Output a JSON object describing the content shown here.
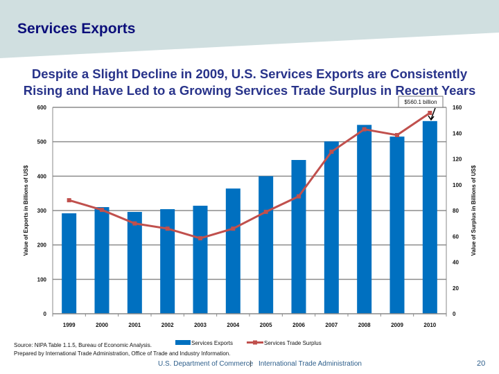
{
  "slide": {
    "title": "Services Exports",
    "headline_line1": "Despite a Slight Decline in 2009, U.S. Services Exports are Consistently",
    "headline_line2": "Rising and Have Led to a Growing Services Trade Surplus in Recent Years",
    "source": "Source:  NIPA Table 1.1.5, Bureau of Economic Analysis.",
    "prepared_by": "Prepared by International Trade Administration, Office of Trade and Industry Information.",
    "footer_left": "U.S. Department of Commerce",
    "footer_right": "International Trade Administration",
    "page_number": "20",
    "band_color": "#d0dfe0"
  },
  "chart_data": {
    "type": "bar+line",
    "categories": [
      "1999",
      "2000",
      "2001",
      "2002",
      "2003",
      "2004",
      "2005",
      "2006",
      "2007",
      "2008",
      "2009",
      "2010"
    ],
    "series": [
      {
        "name": "Services Exports",
        "type": "bar",
        "axis": "left",
        "color": "#0070c0",
        "values": [
          292,
          310,
          296,
          304,
          314,
          364,
          400,
          447,
          501,
          549,
          515,
          560.1
        ]
      },
      {
        "name": "Services Trade Surplus",
        "type": "line",
        "axis": "right",
        "color": "#c0504d",
        "values": [
          88,
          80.5,
          70,
          66,
          58.5,
          66,
          79,
          91,
          125.6,
          143,
          138.5,
          155.7
        ]
      }
    ],
    "ylabel_left": "Value of Exports in Billions of US$",
    "ylabel_right": "Value of Surplus in Billions of US$",
    "ylim_left": [
      0,
      600
    ],
    "yticks_left": [
      0,
      100,
      200,
      300,
      400,
      500,
      600
    ],
    "ylim_right": [
      0,
      160
    ],
    "yticks_right": [
      0,
      20,
      40,
      60,
      80,
      100,
      120,
      140,
      160
    ],
    "grid": true,
    "legend": "bottom",
    "annotation": "$560.1 billion"
  }
}
